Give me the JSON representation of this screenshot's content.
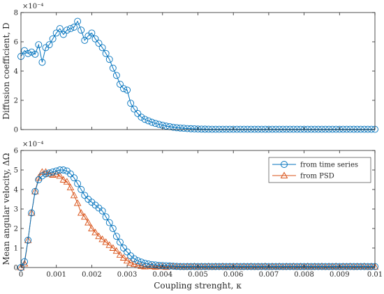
{
  "chart_data": [
    {
      "type": "line",
      "ylabel": "Diffusion coefficient, D",
      "exponent": "×10⁻⁴",
      "xlim": [
        0,
        0.01
      ],
      "ylim": [
        0,
        8
      ],
      "grid": false,
      "xticks": [
        "0",
        "0.001",
        "0.002",
        "0.003",
        "0.004",
        "0.005",
        "0.006",
        "0.007",
        "0.008",
        "0.009",
        "0.01"
      ],
      "yticks": [
        "0",
        "2",
        "4",
        "6",
        "8"
      ],
      "series": [
        {
          "name": "",
          "color": "#0072BD",
          "marker": "circle",
          "x": [
            0.0,
            0.0001,
            0.0002,
            0.0003,
            0.0004,
            0.0005,
            0.0006,
            0.0007,
            0.0008,
            0.0009,
            0.001,
            0.0011,
            0.0012,
            0.0013,
            0.0014,
            0.0015,
            0.0016,
            0.0017,
            0.0018,
            0.0019,
            0.002,
            0.0021,
            0.0022,
            0.0023,
            0.0024,
            0.0025,
            0.0026,
            0.0027,
            0.0028,
            0.0029,
            0.003,
            0.0031,
            0.0032,
            0.0033,
            0.0034,
            0.0035,
            0.0036,
            0.0037,
            0.0038,
            0.0039,
            0.004,
            0.0041,
            0.0042,
            0.0043,
            0.0044,
            0.0045,
            0.0046,
            0.0047,
            0.0048,
            0.0049,
            0.005,
            0.0051,
            0.0052,
            0.0053,
            0.0054,
            0.0055,
            0.0056,
            0.0057,
            0.0058,
            0.0059,
            0.006,
            0.0061,
            0.0062,
            0.0063,
            0.0064,
            0.0065,
            0.0066,
            0.0067,
            0.0068,
            0.0069,
            0.007,
            0.0071,
            0.0072,
            0.0073,
            0.0074,
            0.0075,
            0.0076,
            0.0077,
            0.0078,
            0.0079,
            0.008,
            0.0081,
            0.0082,
            0.0083,
            0.0084,
            0.0085,
            0.0086,
            0.0087,
            0.0088,
            0.0089,
            0.009,
            0.0091,
            0.0092,
            0.0093,
            0.0094,
            0.0095,
            0.0096,
            0.0097,
            0.0098,
            0.0099,
            0.01
          ],
          "y": [
            5.0,
            5.4,
            5.2,
            5.3,
            5.15,
            5.8,
            4.6,
            5.6,
            5.8,
            6.2,
            6.6,
            6.9,
            6.5,
            6.8,
            6.9,
            7.0,
            7.4,
            6.8,
            6.1,
            6.4,
            6.6,
            6.2,
            5.9,
            5.6,
            5.2,
            4.8,
            4.2,
            3.7,
            3.1,
            2.8,
            2.7,
            1.8,
            1.4,
            1.1,
            0.85,
            0.7,
            0.6,
            0.5,
            0.42,
            0.36,
            0.3,
            0.24,
            0.2,
            0.16,
            0.13,
            0.11,
            0.09,
            0.07,
            0.06,
            0.05,
            0.04,
            0.035,
            0.03,
            0.025,
            0.02,
            0.02,
            0.02,
            0.02,
            0.02,
            0.02,
            0.02,
            0.02,
            0.02,
            0.02,
            0.02,
            0.02,
            0.02,
            0.02,
            0.02,
            0.02,
            0.02,
            0.02,
            0.02,
            0.02,
            0.02,
            0.02,
            0.02,
            0.02,
            0.02,
            0.02,
            0.02,
            0.02,
            0.02,
            0.02,
            0.02,
            0.02,
            0.02,
            0.02,
            0.02,
            0.02,
            0.02,
            0.02,
            0.02,
            0.02,
            0.02,
            0.02,
            0.02,
            0.02,
            0.02,
            0.02,
            0.02
          ]
        }
      ]
    },
    {
      "type": "line",
      "ylabel": "Mean angular velocity, ΔΩ",
      "xlabel": "Coupling strenght, κ",
      "exponent": "×10⁻⁴",
      "xlim": [
        0,
        0.01
      ],
      "ylim": [
        0,
        6
      ],
      "grid": false,
      "legend_position": "top-right",
      "xticks": [
        "0",
        "0.001",
        "0.002",
        "0.003",
        "0.004",
        "0.005",
        "0.006",
        "0.007",
        "0.008",
        "0.009",
        "0.01"
      ],
      "yticks": [
        "0",
        "1",
        "2",
        "3",
        "4",
        "5",
        "6"
      ],
      "series": [
        {
          "name": "from time series",
          "color": "#0072BD",
          "marker": "circle",
          "x": [
            0.0,
            0.0001,
            0.0002,
            0.0003,
            0.0004,
            0.0005,
            0.0006,
            0.0007,
            0.0008,
            0.0009,
            0.001,
            0.0011,
            0.0012,
            0.0013,
            0.0014,
            0.0015,
            0.0016,
            0.0017,
            0.0018,
            0.0019,
            0.002,
            0.0021,
            0.0022,
            0.0023,
            0.0024,
            0.0025,
            0.0026,
            0.0027,
            0.0028,
            0.0029,
            0.003,
            0.0031,
            0.0032,
            0.0033,
            0.0034,
            0.0035,
            0.0036,
            0.0037,
            0.0038,
            0.0039,
            0.004,
            0.0041,
            0.0042,
            0.0043,
            0.0044,
            0.0045,
            0.0046,
            0.0047,
            0.0048,
            0.0049,
            0.005,
            0.0051,
            0.0052,
            0.0053,
            0.0054,
            0.0055,
            0.0056,
            0.0057,
            0.0058,
            0.0059,
            0.006,
            0.0061,
            0.0062,
            0.0063,
            0.0064,
            0.0065,
            0.0066,
            0.0067,
            0.0068,
            0.0069,
            0.007,
            0.0071,
            0.0072,
            0.0073,
            0.0074,
            0.0075,
            0.0076,
            0.0077,
            0.0078,
            0.0079,
            0.008,
            0.0081,
            0.0082,
            0.0083,
            0.0084,
            0.0085,
            0.0086,
            0.0087,
            0.0088,
            0.0089,
            0.009,
            0.0091,
            0.0092,
            0.0093,
            0.0094,
            0.0095,
            0.0096,
            0.0097,
            0.0098,
            0.0099,
            0.01
          ],
          "y": [
            0.0,
            0.3,
            1.4,
            2.8,
            3.9,
            4.5,
            4.7,
            4.8,
            4.85,
            4.9,
            4.95,
            5.0,
            5.0,
            4.95,
            4.8,
            4.6,
            4.3,
            4.0,
            3.7,
            3.5,
            3.35,
            3.2,
            3.05,
            2.9,
            2.6,
            2.3,
            2.0,
            1.6,
            1.3,
            1.0,
            0.8,
            0.6,
            0.45,
            0.35,
            0.28,
            0.22,
            0.18,
            0.15,
            0.13,
            0.11,
            0.1,
            0.09,
            0.08,
            0.07,
            0.06,
            0.05,
            0.05,
            0.05,
            0.05,
            0.05,
            0.05,
            0.05,
            0.05,
            0.05,
            0.05,
            0.05,
            0.05,
            0.05,
            0.05,
            0.05,
            0.05,
            0.05,
            0.05,
            0.05,
            0.05,
            0.05,
            0.05,
            0.05,
            0.05,
            0.05,
            0.05,
            0.05,
            0.05,
            0.05,
            0.05,
            0.05,
            0.05,
            0.05,
            0.05,
            0.05,
            0.05,
            0.05,
            0.05,
            0.05,
            0.05,
            0.05,
            0.05,
            0.05,
            0.05,
            0.05,
            0.05,
            0.05,
            0.05,
            0.05,
            0.05,
            0.05,
            0.05,
            0.05,
            0.05,
            0.05,
            0.05
          ]
        },
        {
          "name": "from PSD",
          "color": "#D95319",
          "marker": "triangle",
          "x": [
            0.0,
            0.0001,
            0.0002,
            0.0003,
            0.0004,
            0.0005,
            0.0006,
            0.0007,
            0.0008,
            0.0009,
            0.001,
            0.0011,
            0.0012,
            0.0013,
            0.0014,
            0.0015,
            0.0016,
            0.0017,
            0.0018,
            0.0019,
            0.002,
            0.0021,
            0.0022,
            0.0023,
            0.0024,
            0.0025,
            0.0026,
            0.0027,
            0.0028,
            0.0029,
            0.003,
            0.0031,
            0.0032,
            0.0033,
            0.0034,
            0.0035,
            0.0036,
            0.0037,
            0.0038,
            0.0039,
            0.004,
            0.0041,
            0.0042,
            0.0043,
            0.0044,
            0.0045,
            0.0046,
            0.0047,
            0.0048,
            0.0049,
            0.005,
            0.0051,
            0.0052,
            0.0053,
            0.0054,
            0.0055,
            0.0056,
            0.0057,
            0.0058,
            0.0059,
            0.006,
            0.0061,
            0.0062,
            0.0063,
            0.0064,
            0.0065,
            0.0066,
            0.0067,
            0.0068,
            0.0069,
            0.007,
            0.0071,
            0.0072,
            0.0073,
            0.0074,
            0.0075,
            0.0076,
            0.0077,
            0.0078,
            0.0079,
            0.008,
            0.0081,
            0.0082,
            0.0083,
            0.0084,
            0.0085,
            0.0086,
            0.0087,
            0.0088,
            0.0089,
            0.009,
            0.0091,
            0.0092,
            0.0093,
            0.0094,
            0.0095,
            0.0096,
            0.0097,
            0.0098,
            0.0099,
            0.01
          ],
          "y": [
            0.0,
            0.2,
            1.4,
            2.8,
            3.9,
            4.6,
            4.9,
            4.9,
            4.8,
            4.75,
            4.8,
            4.7,
            4.5,
            4.4,
            4.1,
            3.7,
            3.3,
            2.8,
            2.6,
            2.3,
            2.0,
            1.8,
            1.6,
            1.45,
            1.3,
            1.15,
            1.0,
            0.85,
            0.65,
            0.5,
            0.35,
            0.25,
            0.18,
            0.12,
            0.08,
            0.05,
            0.06,
            0.07,
            0.04,
            0.06,
            0.05,
            0.03,
            0.05,
            0.06,
            0.04,
            0.05,
            0.03,
            0.05,
            0.04,
            0.06,
            0.03,
            0.05,
            0.04,
            0.06,
            0.03,
            0.05,
            0.04,
            0.06,
            0.03,
            0.05,
            0.04,
            0.06,
            0.03,
            0.05,
            0.04,
            0.06,
            0.03,
            0.05,
            0.04,
            0.06,
            0.03,
            0.05,
            0.04,
            0.06,
            0.03,
            0.05,
            0.04,
            0.06,
            0.03,
            0.05,
            0.04,
            0.06,
            0.03,
            0.05,
            0.04,
            0.06,
            0.03,
            0.05,
            0.04,
            0.06,
            0.03,
            0.05,
            0.04,
            0.06,
            0.03,
            0.05,
            0.04,
            0.06,
            0.03,
            0.05,
            0.04
          ]
        }
      ]
    }
  ]
}
